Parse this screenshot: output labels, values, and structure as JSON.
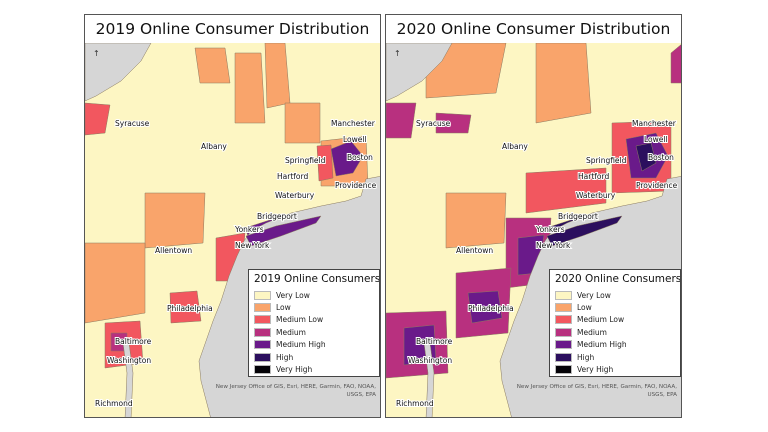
{
  "legend_levels": [
    {
      "label": "Very Low",
      "color": "#fdf6c3"
    },
    {
      "label": "Low",
      "color": "#f9a46b"
    },
    {
      "label": "Medium Low",
      "color": "#f2575f"
    },
    {
      "label": "Medium",
      "color": "#b8307f"
    },
    {
      "label": "Medium High",
      "color": "#6a1a8a"
    },
    {
      "label": "High",
      "color": "#2c0f5e"
    },
    {
      "label": "Very High",
      "color": "#050308"
    }
  ],
  "water_color": "#d6d6d6",
  "cities": [
    "Syracuse",
    "Albany",
    "Manchester",
    "Lowell",
    "Boston",
    "Springfield",
    "Hartford",
    "Providence",
    "Waterbury",
    "Bridgeport",
    "Yonkers",
    "New York",
    "Allentown",
    "Philadelphia",
    "Baltimore",
    "Washington",
    "Richmond"
  ],
  "attribution": "New Jersey Office of GIS, Esri, HERE, Garmin, FAO, NOAA, USGS, EPA",
  "panels": [
    {
      "title": "2019 Online Consumer Distribution",
      "legend_title": "2019 Online Consumers"
    },
    {
      "title": "2020 Online Consumer Distribution",
      "legend_title": "2020 Online Consumers"
    }
  ]
}
